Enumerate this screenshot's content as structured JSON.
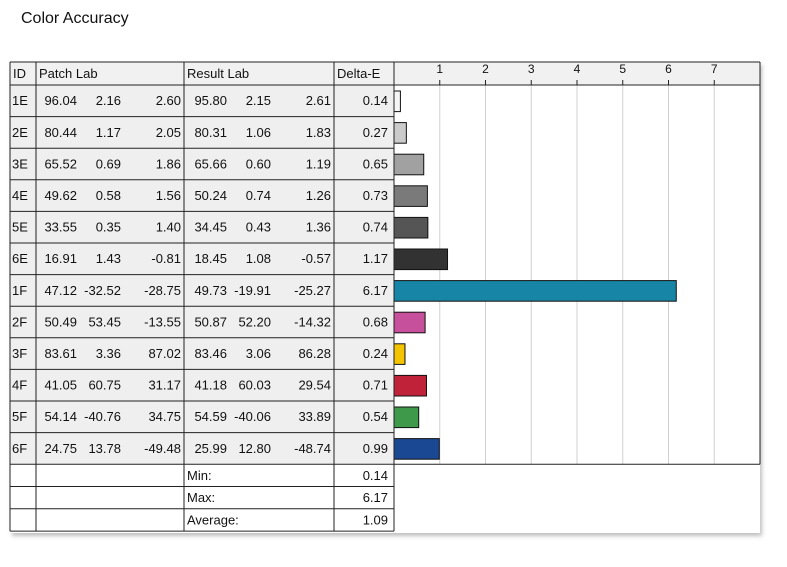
{
  "title": "Color Accuracy",
  "table": {
    "headers": [
      "ID",
      "Patch Lab",
      "Result Lab",
      "Delta-E"
    ],
    "rows": [
      {
        "id": "1E",
        "patch": [
          "96.04",
          "2.16",
          "2.60"
        ],
        "result": [
          "95.80",
          "2.15",
          "2.61"
        ],
        "delta_e": 0.14,
        "color": "#f6f6f6"
      },
      {
        "id": "2E",
        "patch": [
          "80.44",
          "1.17",
          "2.05"
        ],
        "result": [
          "80.31",
          "1.06",
          "1.83"
        ],
        "delta_e": 0.27,
        "color": "#cbcbcb"
      },
      {
        "id": "3E",
        "patch": [
          "65.52",
          "0.69",
          "1.86"
        ],
        "result": [
          "65.66",
          "0.60",
          "1.19"
        ],
        "delta_e": 0.65,
        "color": "#a1a1a1"
      },
      {
        "id": "4E",
        "patch": [
          "49.62",
          "0.58",
          "1.56"
        ],
        "result": [
          "50.24",
          "0.74",
          "1.26"
        ],
        "delta_e": 0.73,
        "color": "#7a7a7a"
      },
      {
        "id": "5E",
        "patch": [
          "33.55",
          "0.35",
          "1.40"
        ],
        "result": [
          "34.45",
          "0.43",
          "1.36"
        ],
        "delta_e": 0.74,
        "color": "#555555"
      },
      {
        "id": "6E",
        "patch": [
          "16.91",
          "1.43",
          "-0.81"
        ],
        "result": [
          "18.45",
          "1.08",
          "-0.57"
        ],
        "delta_e": 1.17,
        "color": "#323232"
      },
      {
        "id": "1F",
        "patch": [
          "47.12",
          "-32.52",
          "-28.75"
        ],
        "result": [
          "49.73",
          "-19.91",
          "-25.27"
        ],
        "delta_e": 6.17,
        "color": "#1786a6"
      },
      {
        "id": "2F",
        "patch": [
          "50.49",
          "53.45",
          "-13.55"
        ],
        "result": [
          "50.87",
          "52.20",
          "-14.32"
        ],
        "delta_e": 0.68,
        "color": "#c6509c"
      },
      {
        "id": "3F",
        "patch": [
          "83.61",
          "3.36",
          "87.02"
        ],
        "result": [
          "83.46",
          "3.06",
          "86.28"
        ],
        "delta_e": 0.24,
        "color": "#f5c400"
      },
      {
        "id": "4F",
        "patch": [
          "41.05",
          "60.75",
          "31.17"
        ],
        "result": [
          "41.18",
          "60.03",
          "29.54"
        ],
        "delta_e": 0.71,
        "color": "#c0223a"
      },
      {
        "id": "5F",
        "patch": [
          "54.14",
          "-40.76",
          "34.75"
        ],
        "result": [
          "54.59",
          "-40.06",
          "33.89"
        ],
        "delta_e": 0.54,
        "color": "#3e994a"
      },
      {
        "id": "6F",
        "patch": [
          "24.75",
          "13.78",
          "-49.48"
        ],
        "result": [
          "25.99",
          "12.80",
          "-48.74"
        ],
        "delta_e": 0.99,
        "color": "#1a4892"
      }
    ],
    "summary": [
      {
        "label": "Min:",
        "value": 0.14
      },
      {
        "label": "Max:",
        "value": 6.17
      },
      {
        "label": "Average:",
        "value": 1.09
      }
    ],
    "xlim": [
      0,
      8
    ],
    "xticks": [
      1,
      2,
      3,
      4,
      5,
      6,
      7
    ]
  }
}
